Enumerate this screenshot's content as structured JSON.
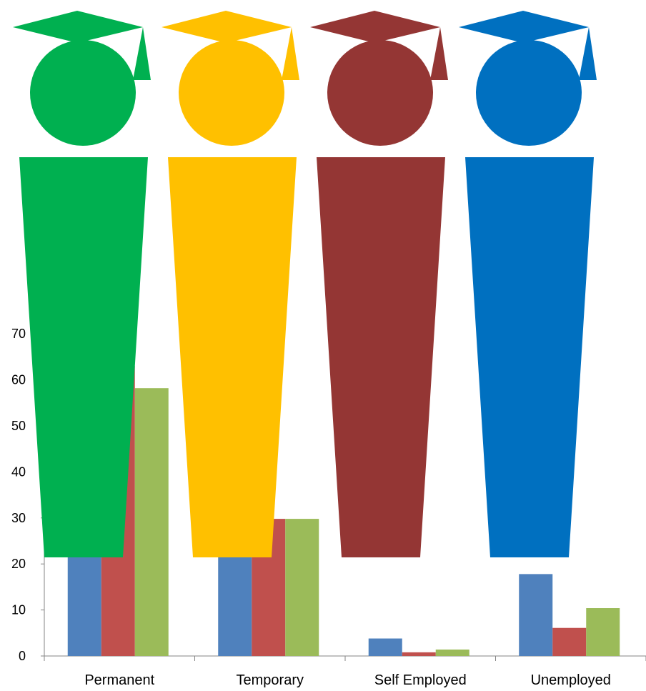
{
  "chart_data": {
    "type": "bar",
    "title": "",
    "xlabel": "",
    "ylabel": "",
    "ylim": [
      0,
      75
    ],
    "yticks": [
      0,
      10,
      20,
      30,
      40,
      50,
      60,
      70
    ],
    "categories": [
      "Permanent",
      "Temporary",
      "Self Employed",
      "Unemployed"
    ],
    "series": [
      {
        "color": "#4F81BD",
        "values": [
          22,
          22,
          3.8,
          17.8
        ]
      },
      {
        "color": "#C0504D",
        "values": [
          63,
          29.8,
          0.8,
          6.1
        ]
      },
      {
        "color": "#9BBB59",
        "values": [
          58.2,
          29.8,
          1.4,
          10.4
        ]
      }
    ],
    "grid": false,
    "legend": "none",
    "figures": [
      {
        "color": "#00B050",
        "icon": "graduate-figure-icon"
      },
      {
        "color": "#FFC000",
        "icon": "graduate-figure-icon"
      },
      {
        "color": "#943634",
        "icon": "graduate-figure-icon"
      },
      {
        "color": "#0070C0",
        "icon": "graduate-figure-icon"
      }
    ]
  }
}
